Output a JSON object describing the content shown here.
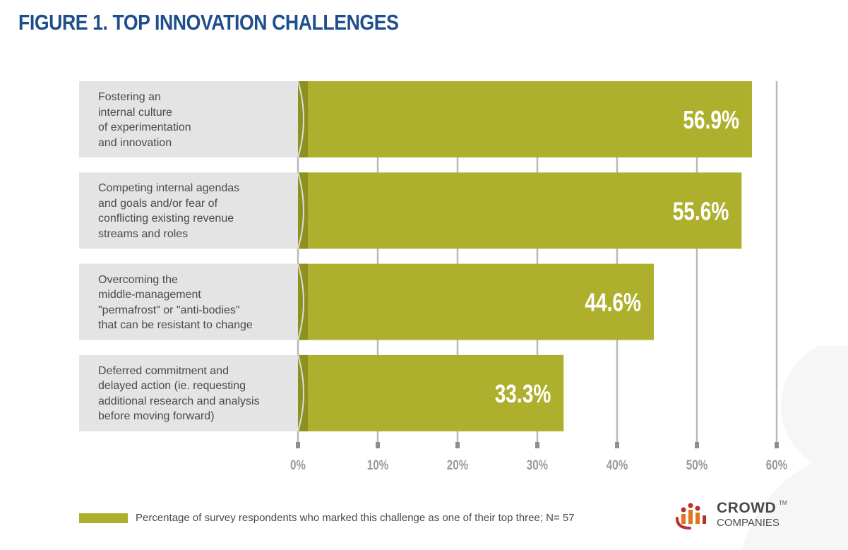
{
  "page": {
    "title": "FIGURE 1. TOP INNOVATION CHALLENGES"
  },
  "chart_data": {
    "type": "bar",
    "orientation": "horizontal",
    "categories": [
      "Fostering an\ninternal culture\nof experimentation\nand innovation",
      "Competing internal agendas\nand goals and/or fear of\nconflicting existing revenue\nstreams and roles",
      "Overcoming the\nmiddle-management\n\"permafrost\" or \"anti-bodies\"\nthat can be resistant to change",
      "Deferred commitment and\ndelayed action (ie. requesting\nadditional research and analysis\nbefore moving forward)"
    ],
    "values": [
      56.9,
      55.6,
      44.6,
      33.3
    ],
    "value_labels": [
      "56.9%",
      "55.6%",
      "44.6%",
      "33.3%"
    ],
    "xlim": [
      0,
      60
    ],
    "ticks": [
      "0%",
      "10%",
      "20%",
      "30%",
      "40%",
      "50%",
      "60%"
    ],
    "grid": true,
    "colors": {
      "bar": "#aeb02d",
      "bar_edge": "#8e9120",
      "label_bg": "#e4e4e4",
      "grid": "#b9b9b9",
      "tick_text": "#9a9a9a",
      "title": "#1f4e8c"
    },
    "legend": {
      "position": "bottom-left",
      "label": "Percentage of survey respondents who marked this challenge as one of their top three; N= 57"
    }
  },
  "logo": {
    "line1": "CROWD",
    "tm": "TM",
    "line2": "COMPANIES",
    "colors": {
      "orange": "#e2731f",
      "red": "#b8312f"
    }
  }
}
